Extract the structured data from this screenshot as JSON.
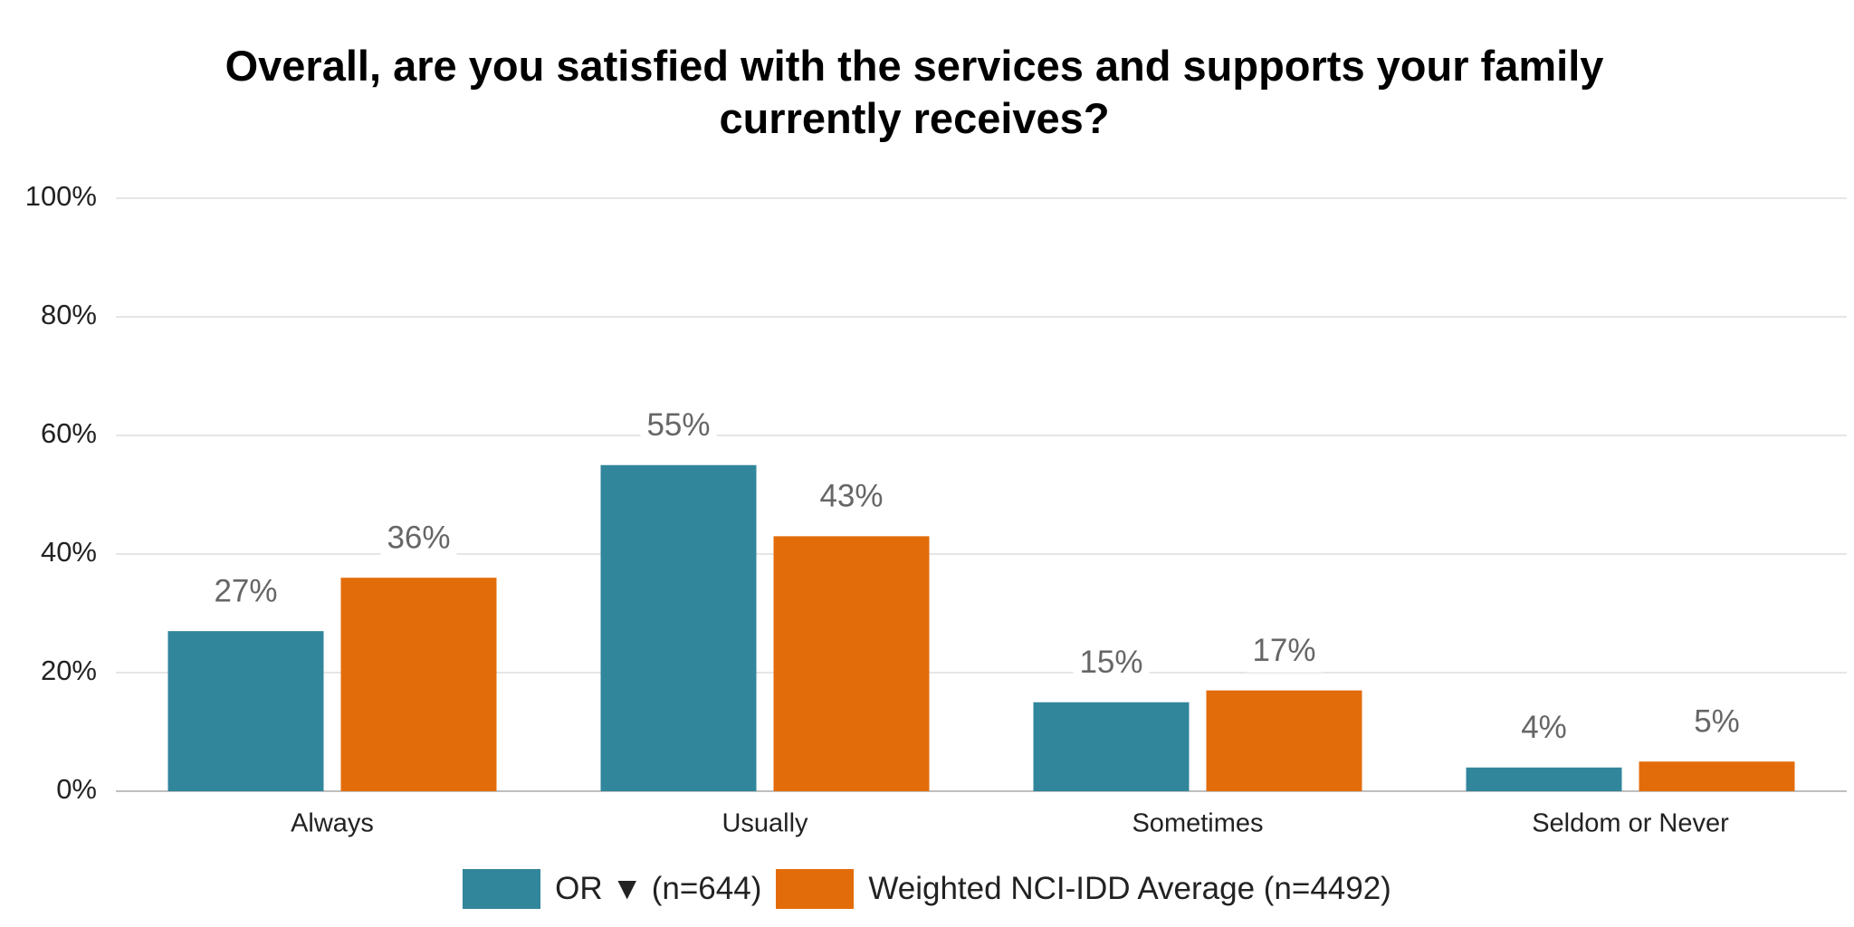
{
  "chart_data": {
    "type": "bar",
    "title": "Overall, are you satisfied with the services and supports your family currently receives?",
    "categories": [
      "Always",
      "Usually",
      "Sometimes",
      "Seldom or Never"
    ],
    "series": [
      {
        "name": "OR ▼ (n=644)",
        "color": "#31869b",
        "values": [
          27,
          55,
          15,
          4
        ],
        "value_labels": [
          "27%",
          "55%",
          "15%",
          "4%"
        ]
      },
      {
        "name": "Weighted NCI-IDD Average (n=4492)",
        "color": "#e36c0a",
        "values": [
          36,
          43,
          17,
          5
        ],
        "value_labels": [
          "36%",
          "43%",
          "17%",
          "5%"
        ]
      }
    ],
    "ylim": [
      0,
      100
    ],
    "yticks": [
      {
        "value": 0,
        "label": "0%"
      },
      {
        "value": 20,
        "label": "20%"
      },
      {
        "value": 40,
        "label": "40%"
      },
      {
        "value": 60,
        "label": "60%"
      },
      {
        "value": 80,
        "label": "80%"
      },
      {
        "value": 100,
        "label": "100%"
      }
    ],
    "grid": true,
    "legend": "bottom"
  }
}
